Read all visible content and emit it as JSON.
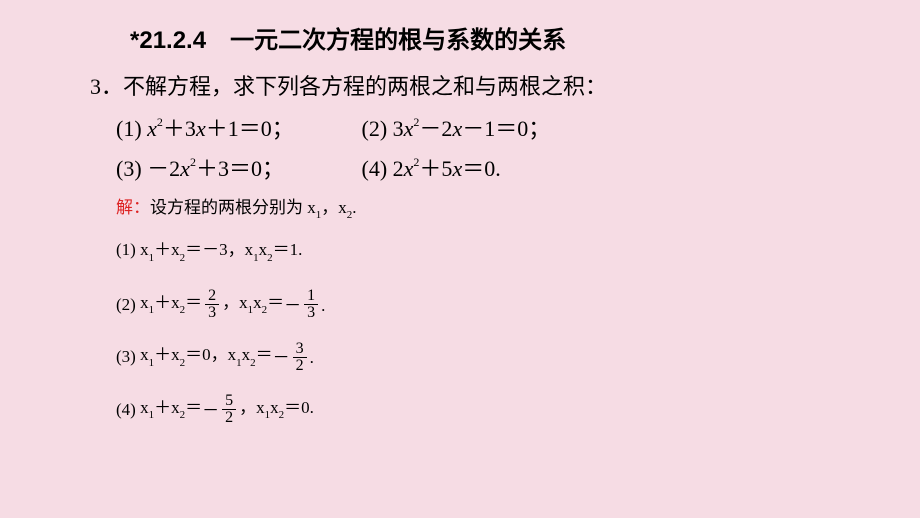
{
  "background_color": "#f6dce4",
  "text_color": "#000000",
  "accent_color": "#d22",
  "title": "*21.2.4　一元二次方程的根与系数的关系",
  "title_fontsize": 24,
  "problem_number": "3．",
  "problem_text": "不解方程，求下列各方程的两根之和与两根之积：",
  "problem_fontsize": 22,
  "equations_fontsize": 22,
  "equations": {
    "e1_label": "(1)",
    "e1_body_html": "<span class='x'>x</span><span class='sup'>2</span>＋3<span class='x'>x</span>＋1＝0；",
    "e2_label": "(2)",
    "e2_body_html": "3<span class='x'>x</span><span class='sup'>2</span>－2<span class='x'>x</span>－1＝0；",
    "e3_label": "(3)",
    "e3_body_html": "－2<span class='x'>x</span><span class='sup'>2</span>＋3＝0；",
    "e4_label": "(4)",
    "e4_body_html": "2<span class='x'>x</span><span class='sup'>2</span>＋5<span class='x'>x</span>＝0."
  },
  "solution_fontsize": 17,
  "solution_label": "解：",
  "solution_intro": "设方程的两根分别为 x<span class='sub'>1</span>，x<span class='sub'>2</span>.",
  "solutions": {
    "s1_html": "(1) x<span class='sub'>1</span>＋x<span class='sub'>2</span>＝－3，x<span class='sub'>1</span>x<span class='sub'>2</span>＝1.",
    "s2_html": "(2) <span class='vamid'>x<span class='sub'>1</span>＋x<span class='sub'>2</span>＝</span><span class='frac'><span class='num'>2</span><span class='den'>3</span></span><span class='vamid'>，x<span class='sub'>1</span>x<span class='sub'>2</span>＝</span><span class='neg-frac'><span class='vamid'>－</span><span class='frac'><span class='num'>1</span><span class='den'>3</span></span></span><span class='vamid'>.</span>",
    "s3_html": "(3) <span class='vamid'>x<span class='sub'>1</span>＋x<span class='sub'>2</span>＝0，x<span class='sub'>1</span>x<span class='sub'>2</span>＝</span><span class='neg-frac'><span class='vamid'>－</span><span class='frac'><span class='num'>3</span><span class='den'>2</span></span></span><span class='vamid'>.</span>",
    "s4_html": "(4) <span class='vamid'>x<span class='sub'>1</span>＋x<span class='sub'>2</span>＝</span><span class='neg-frac'><span class='vamid'>－</span><span class='frac'><span class='num'>5</span><span class='den'>2</span></span></span><span class='vamid'>，x<span class='sub'>1</span>x<span class='sub'>2</span>＝0.</span>"
  }
}
